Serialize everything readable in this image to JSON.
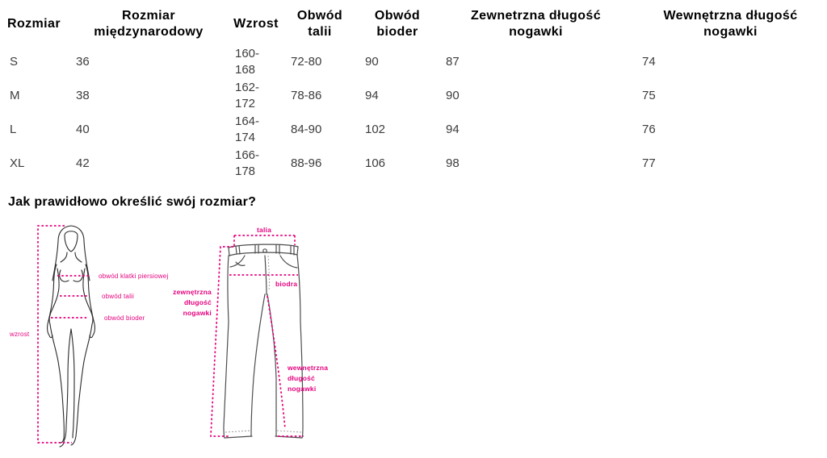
{
  "accent_color": "#e6007e",
  "table": {
    "headers": [
      "Rozmiar",
      "Rozmiar międzynarodowy",
      "Wzrost",
      "Obwód talii",
      "Obwód bioder",
      "Zewnetrzna długość nogawki",
      "Wewnętrzna długość nogawki"
    ],
    "rows": [
      [
        "S",
        "36",
        "160-168",
        "72-80",
        "90",
        "87",
        "74"
      ],
      [
        "M",
        "38",
        "162-172",
        "78-86",
        "94",
        "90",
        "75"
      ],
      [
        "L",
        "40",
        "164-174",
        "84-90",
        "102",
        "94",
        "76"
      ],
      [
        "XL",
        "42",
        "166-178",
        "88-96",
        "106",
        "98",
        "77"
      ]
    ]
  },
  "section_heading": "Jak prawidłowo określić swój rozmiar?",
  "figure_labels": {
    "chest": "obwód klatki piersiowej",
    "waist": "obwód talii",
    "hips": "obwód bioder",
    "height": "wzrost"
  },
  "pants_labels": {
    "waist": "talia",
    "hips": "biodra",
    "outer_leg": "zewnętrzna długość nogawki",
    "inner_leg": "wewnętrzna długość nogawki"
  }
}
